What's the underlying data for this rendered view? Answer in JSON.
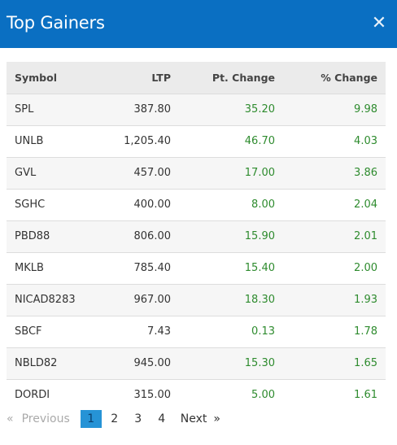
{
  "header": {
    "title": "Top Gainers",
    "close_icon": "close-icon"
  },
  "table": {
    "columns": [
      "Symbol",
      "LTP",
      "Pt. Change",
      "% Change"
    ],
    "rows": [
      {
        "symbol": "SPL",
        "ltp": "387.80",
        "pt_change": "35.20",
        "pct_change": "9.98"
      },
      {
        "symbol": "UNLB",
        "ltp": "1,205.40",
        "pt_change": "46.70",
        "pct_change": "4.03"
      },
      {
        "symbol": "GVL",
        "ltp": "457.00",
        "pt_change": "17.00",
        "pct_change": "3.86"
      },
      {
        "symbol": "SGHC",
        "ltp": "400.00",
        "pt_change": "8.00",
        "pct_change": "2.04"
      },
      {
        "symbol": "PBD88",
        "ltp": "806.00",
        "pt_change": "15.90",
        "pct_change": "2.01"
      },
      {
        "symbol": "MKLB",
        "ltp": "785.40",
        "pt_change": "15.40",
        "pct_change": "2.00"
      },
      {
        "symbol": "NICAD8283",
        "ltp": "967.00",
        "pt_change": "18.30",
        "pct_change": "1.93"
      },
      {
        "symbol": "SBCF",
        "ltp": "7.43",
        "pt_change": "0.13",
        "pct_change": "1.78"
      },
      {
        "symbol": "NBLD82",
        "ltp": "945.00",
        "pt_change": "15.30",
        "pct_change": "1.65"
      },
      {
        "symbol": "DORDI",
        "ltp": "315.00",
        "pt_change": "5.00",
        "pct_change": "1.61"
      }
    ]
  },
  "pagination": {
    "prev_arrow": "«",
    "prev_label": "Previous",
    "pages": [
      "1",
      "2",
      "3",
      "4"
    ],
    "active_page": "1",
    "next_label": "Next",
    "next_arrow": "»"
  },
  "colors": {
    "header_bg": "#0a6fc2",
    "gain_green": "#2e8b2e",
    "active_page_bg": "#2693d6"
  }
}
